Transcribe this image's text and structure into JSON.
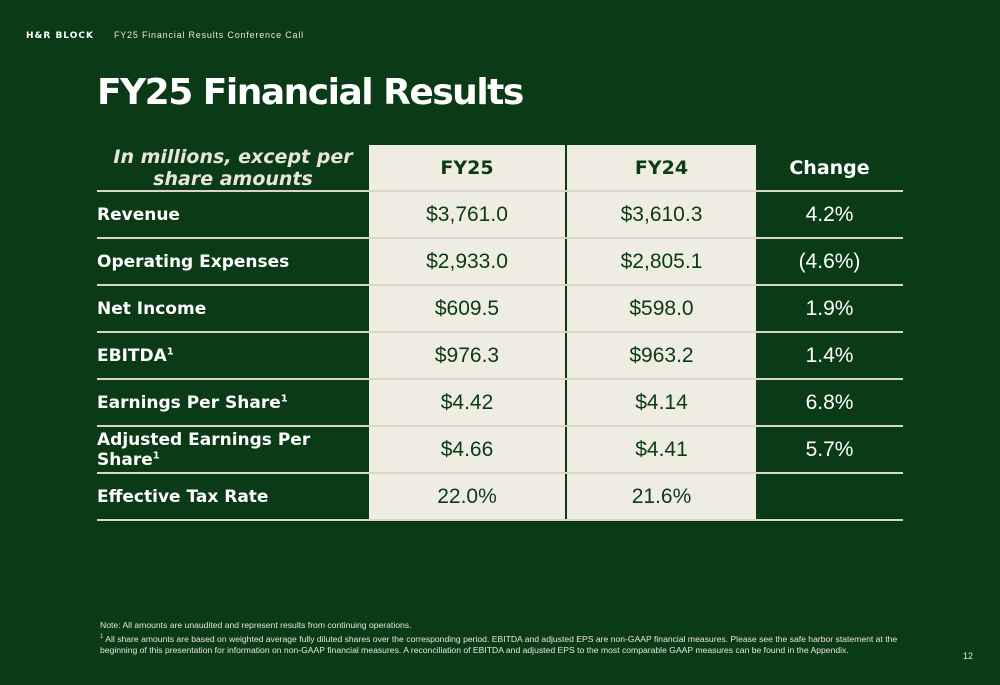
{
  "header": {
    "brand": "H&R BLOCK",
    "subtitle": "FY25 Financial Results Conference Call"
  },
  "title": "FY25 Financial Results",
  "table": {
    "note": "In millions, except per share amounts",
    "columns": [
      "FY25",
      "FY24",
      "Change"
    ],
    "rows": [
      {
        "label": "Revenue",
        "sup": "",
        "fy25": "$3,761.0",
        "fy24": "$3,610.3",
        "change": "4.2%"
      },
      {
        "label": "Operating Expenses",
        "sup": "",
        "fy25": "$2,933.0",
        "fy24": "$2,805.1",
        "change": "(4.6%)"
      },
      {
        "label": "Net Income",
        "sup": "",
        "fy25": "$609.5",
        "fy24": "$598.0",
        "change": "1.9%"
      },
      {
        "label": "EBITDA",
        "sup": "1",
        "fy25": "$976.3",
        "fy24": "$963.2",
        "change": "1.4%"
      },
      {
        "label": "Earnings Per Share",
        "sup": "1",
        "fy25": "$4.42",
        "fy24": "$4.14",
        "change": "6.8%"
      },
      {
        "label": "Adjusted Earnings Per Share",
        "sup": "1",
        "fy25": "$4.66",
        "fy24": "$4.41",
        "change": "5.7%"
      },
      {
        "label": "Effective Tax Rate",
        "sup": "",
        "fy25": "22.0%",
        "fy24": "21.6%",
        "change": ""
      }
    ]
  },
  "footnotes": {
    "note": "Note: All amounts are unaudited and represent results from continuing operations.",
    "footnote_marker": "1",
    "footnote_text": "All share amounts are based on weighted average fully diluted shares over the corresponding period. EBITDA and adjusted EPS are non-GAAP financial measures. Please see the safe harbor statement at the beginning of this presentation for information on non-GAAP financial measures. A reconciliation of EBITDA and adjusted EPS to the most comparable GAAP measures can be found in the Appendix."
  },
  "page_number": "12",
  "colors": {
    "background": "#0b3a17",
    "panel": "#efede2",
    "text_dark": "#0b3a17",
    "text_light": "#ffffff"
  }
}
